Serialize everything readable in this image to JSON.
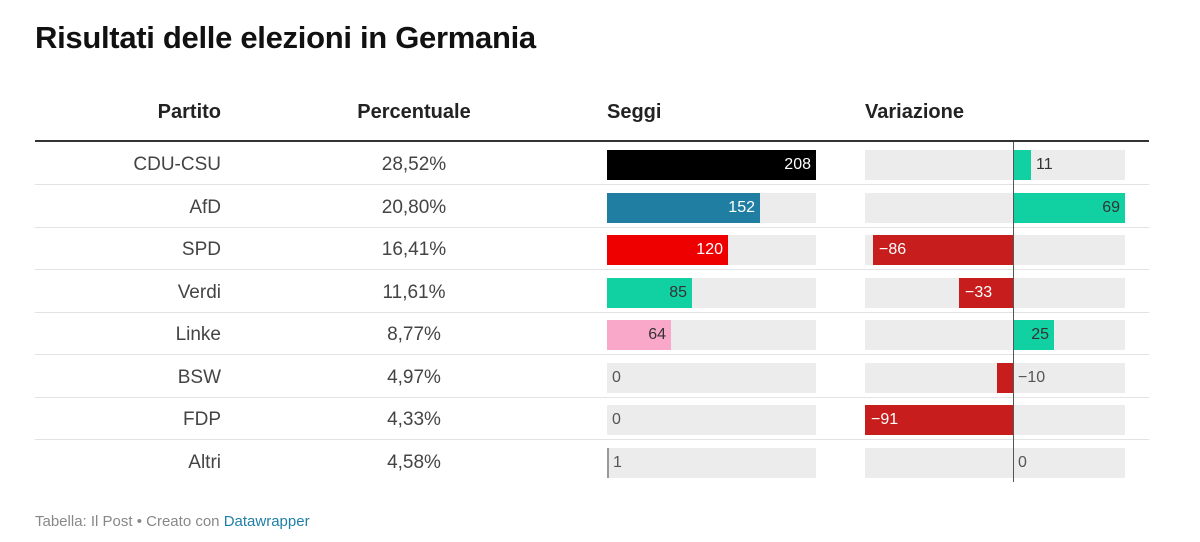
{
  "title": "Risultati delle elezioni in Germania",
  "header": {
    "partito": "Partito",
    "percentuale": "Percentuale",
    "seggi": "Seggi",
    "variazione": "Variazione"
  },
  "footer": {
    "prefix": "Tabella: Il Post • Creato con ",
    "link": "Datawrapper"
  },
  "chart_data": {
    "type": "table",
    "title": "Risultati delle elezioni in Germania",
    "columns": [
      "Partito",
      "Percentuale",
      "Seggi",
      "Variazione"
    ],
    "seggi_max": 208,
    "variazione_range": [
      -91,
      69
    ],
    "rows": [
      {
        "party": "CDU-CSU",
        "percent": "28,52%",
        "seats": 208,
        "seats_label": "208",
        "change": 11,
        "change_label": "11",
        "color": "#000000",
        "seat_text_color": "#ffffff",
        "change_color": "#11d1a3"
      },
      {
        "party": "AfD",
        "percent": "20,80%",
        "seats": 152,
        "seats_label": "152",
        "change": 69,
        "change_label": "69",
        "color": "#1f7ea1",
        "seat_text_color": "#ffffff",
        "change_color": "#11d1a3"
      },
      {
        "party": "SPD",
        "percent": "16,41%",
        "seats": 120,
        "seats_label": "120",
        "change": -86,
        "change_label": "−86",
        "color": "#ee0000",
        "seat_text_color": "#ffffff",
        "change_color": "#c71e1d"
      },
      {
        "party": "Verdi",
        "percent": "11,61%",
        "seats": 85,
        "seats_label": "85",
        "change": -33,
        "change_label": "−33",
        "color": "#11d1a3",
        "seat_text_color": "#333333",
        "change_color": "#c71e1d"
      },
      {
        "party": "Linke",
        "percent": "8,77%",
        "seats": 64,
        "seats_label": "64",
        "change": 25,
        "change_label": "25",
        "color": "#f9a8ca",
        "seat_text_color": "#333333",
        "change_color": "#11d1a3"
      },
      {
        "party": "BSW",
        "percent": "4,97%",
        "seats": 0,
        "seats_label": "0",
        "change": -10,
        "change_label": "−10",
        "color": "#8a2b8a",
        "seat_text_color": "#333333",
        "change_color": "#c71e1d"
      },
      {
        "party": "FDP",
        "percent": "4,33%",
        "seats": 0,
        "seats_label": "0",
        "change": -91,
        "change_label": "−91",
        "color": "#ffd400",
        "seat_text_color": "#333333",
        "change_color": "#c71e1d"
      },
      {
        "party": "Altri",
        "percent": "4,58%",
        "seats": 1,
        "seats_label": "1",
        "change": 0,
        "change_label": "0",
        "color": "#999999",
        "seat_text_color": "#333333",
        "change_color": "#999999"
      }
    ]
  }
}
